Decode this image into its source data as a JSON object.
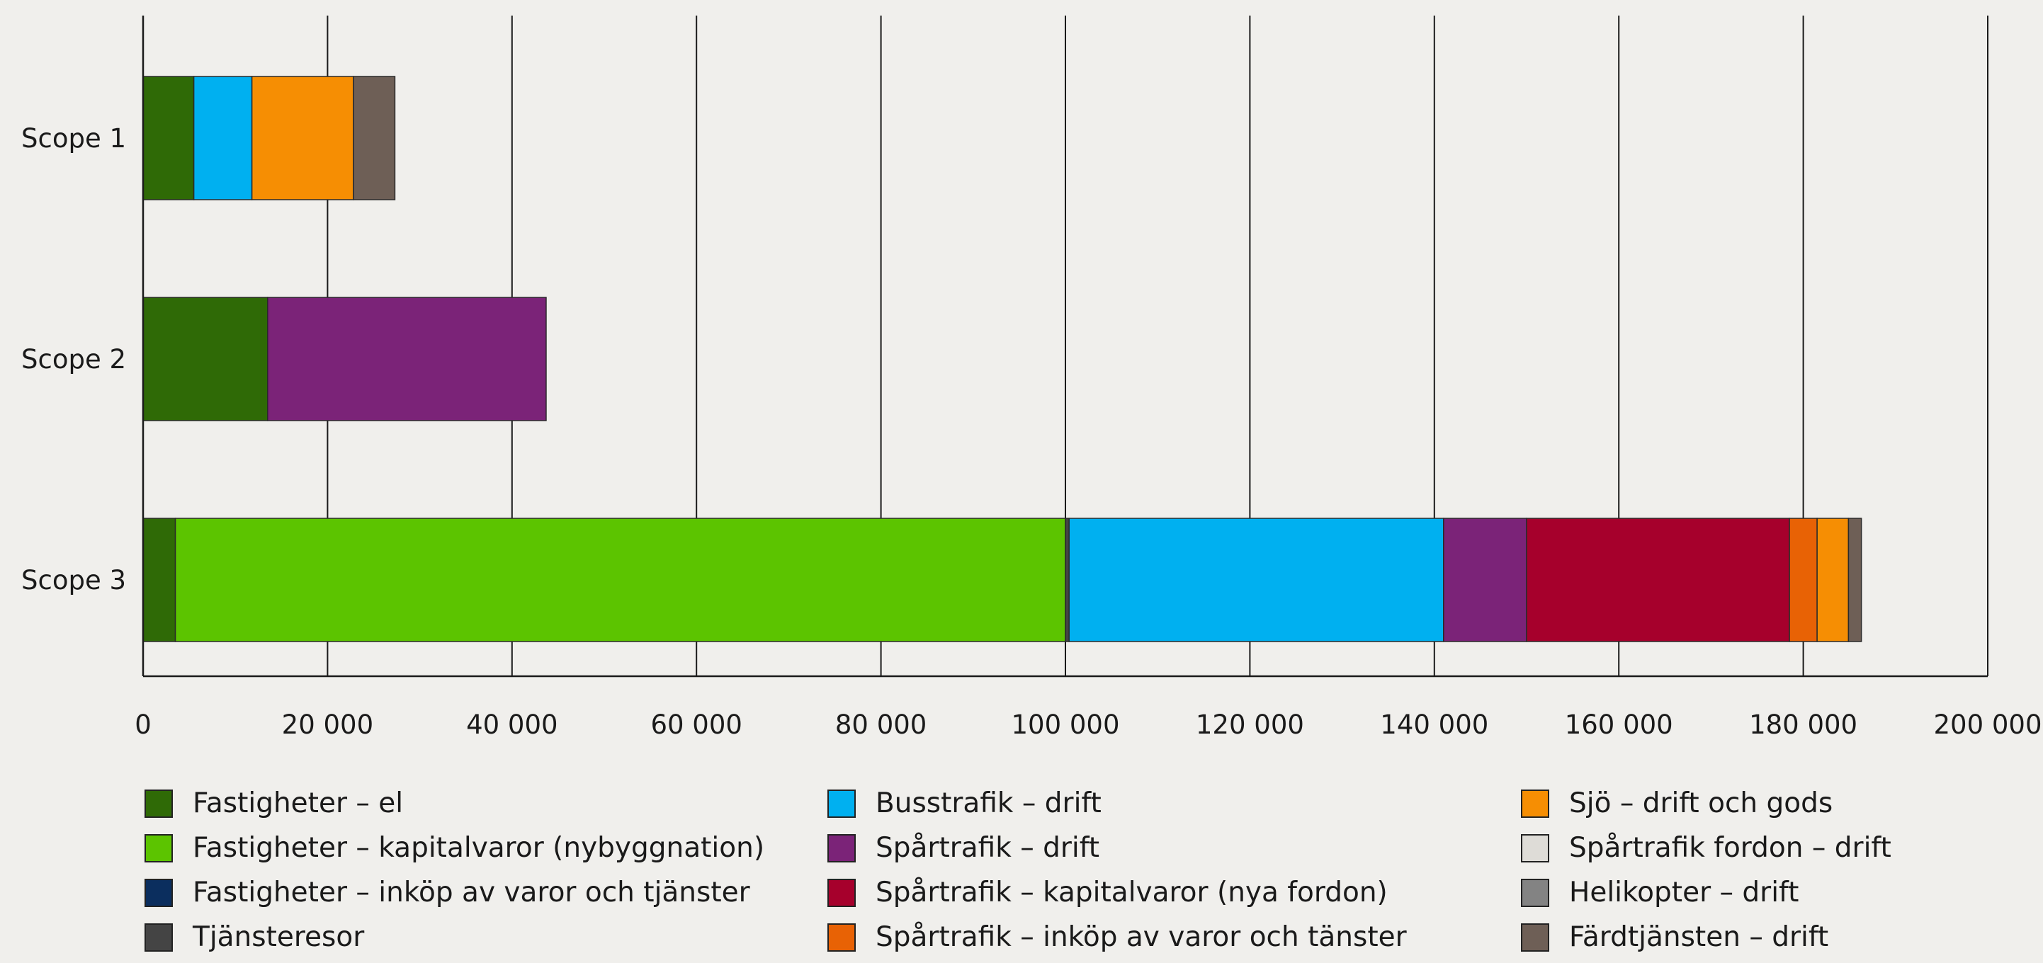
{
  "chart_data": {
    "type": "bar",
    "orientation": "horizontal",
    "stacked": true,
    "categories": [
      "Scope 1",
      "Scope 2",
      "Scope 3"
    ],
    "xlim": [
      0,
      200000
    ],
    "xticks": [
      0,
      20000,
      40000,
      60000,
      80000,
      100000,
      120000,
      140000,
      160000,
      180000,
      200000
    ],
    "xtick_labels": [
      "0",
      "20 000",
      "40 000",
      "60 000",
      "80 000",
      "100 000",
      "120 000",
      "140 000",
      "160 000",
      "180 000",
      "200 000"
    ],
    "grid": "vertical",
    "legend_position": "bottom",
    "series": [
      {
        "name": "Fastigheter – el",
        "color": "#2f6a06",
        "values": [
          5500,
          13500,
          3500
        ]
      },
      {
        "name": "Fastigheter – kapitalvaror (nybyggnation)",
        "color": "#5cc400",
        "values": [
          0,
          0,
          96500
        ]
      },
      {
        "name": "Fastigheter – inköp av varor och tjänster",
        "color": "#0b2e5e",
        "values": [
          0,
          0,
          0
        ]
      },
      {
        "name": "Tjänsteresor",
        "color": "#444444",
        "values": [
          0,
          0,
          400
        ]
      },
      {
        "name": "Busstrafik – drift",
        "color": "#00b0f0",
        "values": [
          6300,
          0,
          40600
        ]
      },
      {
        "name": "Spårtrafik – drift",
        "color": "#7b2378",
        "values": [
          0,
          30200,
          9000
        ]
      },
      {
        "name": "Spårtrafik – kapitalvaror (nya fordon)",
        "color": "#a6002c",
        "values": [
          0,
          0,
          28500
        ]
      },
      {
        "name": "Spårtrafik – inköp av varor och tänster",
        "color": "#e86205",
        "values": [
          0,
          0,
          3000
        ]
      },
      {
        "name": "Sjö – drift och gods",
        "color": "#f68e03",
        "values": [
          11000,
          0,
          3400
        ]
      },
      {
        "name": "Spårtrafik fordon – drift",
        "color": "#dedcd7",
        "values": [
          0,
          0,
          0
        ]
      },
      {
        "name": "Helikopter – drift",
        "color": "#838383",
        "values": [
          0,
          0,
          0
        ]
      },
      {
        "name": "Färdtjänsten – drift",
        "color": "#6e5f56",
        "values": [
          4500,
          0,
          1400
        ]
      }
    ]
  }
}
